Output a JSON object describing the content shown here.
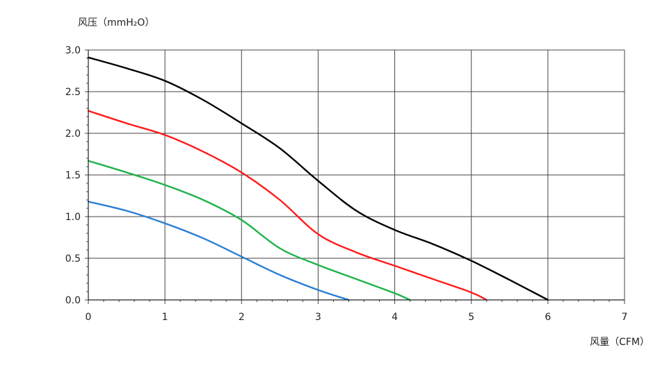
{
  "chart_data": {
    "type": "line",
    "title": "",
    "ylabel": "风压（mmH₂O）",
    "xlabel": "风量（CFM）",
    "xlim": [
      0,
      7
    ],
    "ylim": [
      0,
      3.0
    ],
    "xticks": [
      0,
      1,
      2,
      3,
      4,
      5,
      6,
      7
    ],
    "xtick_labels": [
      "0",
      "1",
      "2",
      "3",
      "4",
      "5",
      "6",
      "7"
    ],
    "yticks": [
      0,
      0.5,
      1.0,
      1.5,
      2.0,
      2.5,
      3.0
    ],
    "ytick_labels": [
      "0.0",
      "0.5",
      "1.0",
      "1.5",
      "2.0",
      "2.5",
      "3.0"
    ],
    "grid": true,
    "legend": "none",
    "series": [
      {
        "color": "#000000",
        "x": [
          0,
          0.5,
          1.0,
          1.5,
          2.0,
          2.5,
          3.0,
          3.5,
          4.0,
          4.5,
          5.0,
          5.5,
          6.0
        ],
        "y": [
          2.91,
          2.78,
          2.63,
          2.4,
          2.12,
          1.82,
          1.43,
          1.07,
          0.84,
          0.67,
          0.47,
          0.24,
          0.0
        ]
      },
      {
        "color": "#ff1a1a",
        "x": [
          0,
          0.5,
          1.0,
          1.5,
          2.0,
          2.5,
          3.0,
          3.5,
          4.0,
          4.5,
          5.0,
          5.2
        ],
        "y": [
          2.27,
          2.12,
          1.98,
          1.78,
          1.53,
          1.2,
          0.79,
          0.57,
          0.41,
          0.25,
          0.09,
          0.0
        ]
      },
      {
        "color": "#1fb34a",
        "x": [
          0,
          0.5,
          1.0,
          1.5,
          2.0,
          2.5,
          3.0,
          3.5,
          4.0,
          4.2
        ],
        "y": [
          1.67,
          1.53,
          1.38,
          1.2,
          0.96,
          0.62,
          0.42,
          0.25,
          0.08,
          0.0
        ]
      },
      {
        "color": "#2a7fd4",
        "x": [
          0,
          0.5,
          1.0,
          1.5,
          2.0,
          2.5,
          3.0,
          3.4
        ],
        "y": [
          1.18,
          1.07,
          0.92,
          0.74,
          0.52,
          0.3,
          0.12,
          0.0
        ]
      }
    ]
  }
}
